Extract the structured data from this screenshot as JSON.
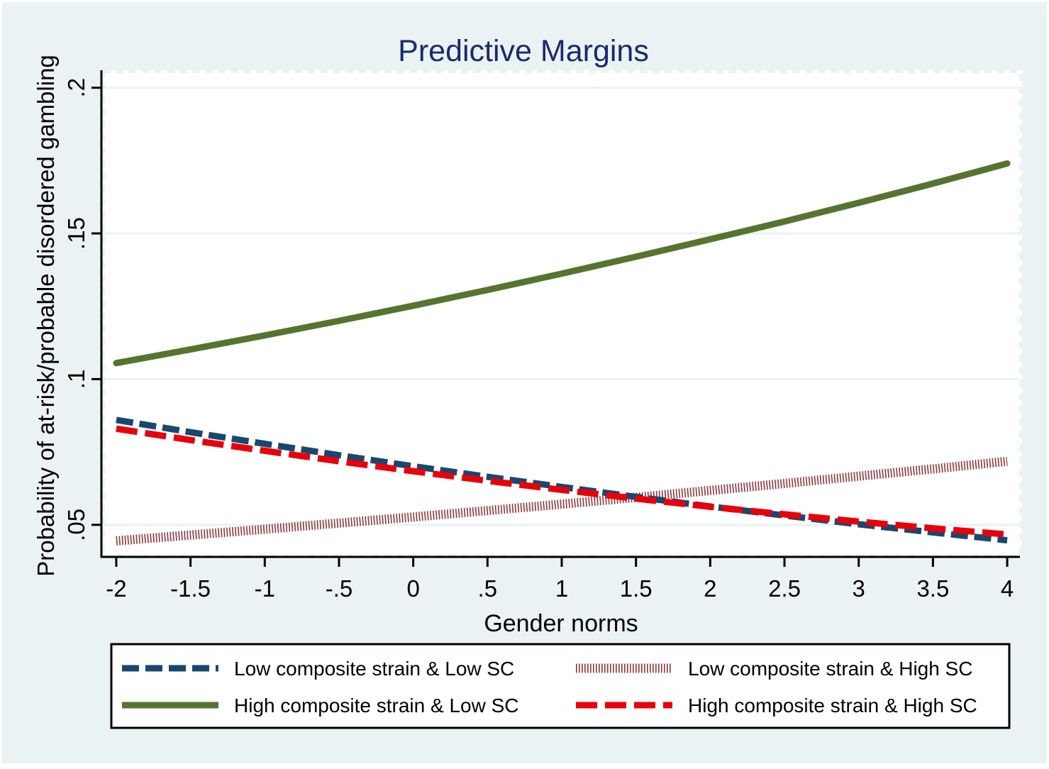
{
  "chart_data": {
    "type": "line",
    "title": "Predictive Margins",
    "xlabel": "Gender norms",
    "ylabel": "Probability of at-risk/probable disordered gambling",
    "xlim": [
      -2.1,
      4.1
    ],
    "ylim": [
      0.039,
      0.206
    ],
    "x_ticks": [
      -2,
      -1.5,
      -1,
      -0.5,
      0,
      0.5,
      1,
      1.5,
      2,
      2.5,
      3,
      3.5,
      4
    ],
    "x_tick_labels": [
      "-2",
      "-1.5",
      "-1",
      "-.5",
      "0",
      ".5",
      "1",
      "1.5",
      "2",
      "2.5",
      "3",
      "3.5",
      "4"
    ],
    "y_ticks": [
      0.05,
      0.1,
      0.15,
      0.2
    ],
    "y_tick_labels": [
      ".05",
      ".1",
      ".15",
      ".2"
    ],
    "grid": true,
    "legend_position": "bottom",
    "series": [
      {
        "name": "Low composite strain & Low SC",
        "color": "#1a476f",
        "style": "dash",
        "x": [
          -2,
          -1.5,
          -1,
          -0.5,
          0,
          0.5,
          1,
          1.5,
          2,
          2.5,
          3,
          3.5,
          4
        ],
        "values": [
          0.086,
          0.0818,
          0.0778,
          0.0739,
          0.0701,
          0.0665,
          0.063,
          0.0596,
          0.0563,
          0.0532,
          0.0502,
          0.0474,
          0.0447
        ]
      },
      {
        "name": "Low composite strain & High SC",
        "color": "#90353b",
        "style": "shortdash",
        "x": [
          -2,
          -1.5,
          -1,
          -0.5,
          0,
          0.5,
          1,
          1.5,
          2,
          2.5,
          3,
          3.5,
          4
        ],
        "values": [
          0.0445,
          0.0465,
          0.0485,
          0.0506,
          0.0527,
          0.0549,
          0.0571,
          0.0594,
          0.0618,
          0.0642,
          0.0667,
          0.0692,
          0.0718
        ]
      },
      {
        "name": "High composite strain & Low SC",
        "color": "#55752f",
        "style": "solid",
        "x": [
          -2,
          -1.5,
          -1,
          -0.5,
          0,
          0.5,
          1,
          1.5,
          2,
          2.5,
          3,
          3.5,
          4
        ],
        "values": [
          0.1055,
          0.1102,
          0.115,
          0.12,
          0.1252,
          0.1306,
          0.1362,
          0.142,
          0.148,
          0.1541,
          0.1605,
          0.1671,
          0.174
        ]
      },
      {
        "name": "High composite strain & High SC",
        "color": "#e8000b",
        "style": "longdash",
        "x": [
          -2,
          -1.5,
          -1,
          -0.5,
          0,
          0.5,
          1,
          1.5,
          2,
          2.5,
          3,
          3.5,
          4
        ],
        "values": [
          0.083,
          0.0791,
          0.0754,
          0.0718,
          0.0684,
          0.0651,
          0.062,
          0.059,
          0.0562,
          0.0536,
          0.0511,
          0.0488,
          0.0467
        ]
      }
    ],
    "legend_order": [
      0,
      1,
      2,
      3
    ]
  }
}
